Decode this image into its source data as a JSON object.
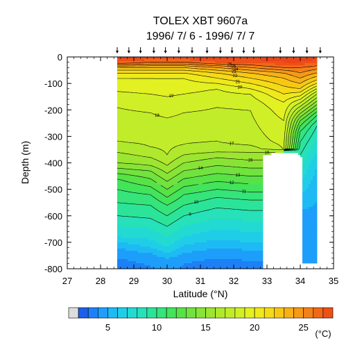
{
  "chart_data": {
    "type": "heatmap",
    "title": "TOLEX XBT 9607a",
    "subtitle": "1996/ 7/ 6 - 1996/ 7/ 7",
    "xlabel": "Latitude (°N)",
    "ylabel": "Depth (m)",
    "xlim": [
      27,
      35
    ],
    "ylim": [
      -800,
      0
    ],
    "x_ticks": [
      "27",
      "28",
      "29",
      "30",
      "31",
      "32",
      "33",
      "34",
      "35"
    ],
    "y_ticks": [
      "0",
      "-100",
      "-200",
      "-300",
      "-400",
      "-500",
      "-600",
      "-700",
      "-800"
    ],
    "x_tick_values": [
      27,
      28,
      29,
      30,
      31,
      32,
      33,
      34,
      35
    ],
    "y_tick_values": [
      0,
      -100,
      -200,
      -300,
      -400,
      -500,
      -600,
      -700,
      -800
    ],
    "colorbar": {
      "min": 2,
      "max": 28,
      "step": 1,
      "labels": [
        "5",
        "10",
        "15",
        "20",
        "25"
      ],
      "label_values": [
        5,
        10,
        15,
        20,
        25
      ],
      "unit": "(°C)"
    },
    "xbt_station_latitudes": [
      28.5,
      28.85,
      29.2,
      29.6,
      29.95,
      30.35,
      30.75,
      31.2,
      31.6,
      31.95,
      32.3,
      32.6,
      33.4,
      33.8,
      34.2,
      34.6
    ],
    "data_extent": {
      "lat_min": 28.5,
      "lat_max": 34.5,
      "max_depth": -800
    },
    "bottom_profile": [
      [
        32.9,
        -370
      ],
      [
        33.4,
        -360
      ],
      [
        33.9,
        -360
      ],
      [
        34.0,
        -375
      ],
      [
        34.5,
        -375
      ]
    ],
    "profiles": [
      {
        "lat": 28.5,
        "temps": [
          [
            0,
            29
          ],
          [
            -20,
            27
          ],
          [
            -40,
            23
          ],
          [
            -60,
            21
          ],
          [
            -80,
            20
          ],
          [
            -130,
            19
          ],
          [
            -190,
            18
          ],
          [
            -320,
            17
          ],
          [
            -360,
            16
          ],
          [
            -400,
            15
          ],
          [
            -420,
            14
          ],
          [
            -440,
            13
          ],
          [
            -460,
            12
          ],
          [
            -500,
            11
          ],
          [
            -550,
            10
          ],
          [
            -600,
            9
          ],
          [
            -640,
            8
          ],
          [
            -680,
            7
          ],
          [
            -700,
            6
          ],
          [
            -720,
            5
          ],
          [
            -760,
            4
          ],
          [
            -800,
            3
          ]
        ]
      },
      {
        "lat": 29.5,
        "temps": [
          [
            0,
            28
          ],
          [
            -20,
            26
          ],
          [
            -40,
            23
          ],
          [
            -60,
            21
          ],
          [
            -80,
            20
          ],
          [
            -140,
            19
          ],
          [
            -210,
            18
          ],
          [
            -340,
            17
          ],
          [
            -380,
            16
          ],
          [
            -410,
            15
          ],
          [
            -430,
            14
          ],
          [
            -460,
            13
          ],
          [
            -490,
            12
          ],
          [
            -520,
            11
          ],
          [
            -560,
            10
          ],
          [
            -610,
            9
          ],
          [
            -650,
            8
          ],
          [
            -690,
            7
          ],
          [
            -720,
            6
          ],
          [
            -740,
            5
          ],
          [
            -790,
            4
          ],
          [
            -800,
            3.8
          ]
        ]
      },
      {
        "lat": 30.0,
        "temps": [
          [
            0,
            28
          ],
          [
            -20,
            26
          ],
          [
            -40,
            23
          ],
          [
            -60,
            21
          ],
          [
            -80,
            20
          ],
          [
            -150,
            19
          ],
          [
            -230,
            18
          ],
          [
            -370,
            17
          ],
          [
            -410,
            16
          ],
          [
            -440,
            15
          ],
          [
            -470,
            14
          ],
          [
            -500,
            13
          ],
          [
            -530,
            12
          ],
          [
            -560,
            11
          ],
          [
            -600,
            10
          ],
          [
            -640,
            9
          ],
          [
            -680,
            8
          ],
          [
            -720,
            7
          ],
          [
            -740,
            6
          ],
          [
            -760,
            5
          ],
          [
            -800,
            4.5
          ]
        ]
      },
      {
        "lat": 30.5,
        "temps": [
          [
            0,
            28
          ],
          [
            -20,
            26
          ],
          [
            -40,
            23
          ],
          [
            -60,
            21
          ],
          [
            -80,
            20
          ],
          [
            -140,
            19
          ],
          [
            -210,
            18
          ],
          [
            -330,
            17
          ],
          [
            -370,
            16
          ],
          [
            -400,
            15
          ],
          [
            -430,
            14
          ],
          [
            -460,
            13
          ],
          [
            -490,
            12
          ],
          [
            -520,
            11
          ],
          [
            -560,
            10
          ],
          [
            -600,
            9
          ],
          [
            -640,
            8
          ],
          [
            -680,
            7
          ],
          [
            -710,
            6
          ],
          [
            -740,
            5
          ],
          [
            -780,
            4
          ],
          [
            -800,
            3.8
          ]
        ]
      },
      {
        "lat": 31.5,
        "temps": [
          [
            0,
            29
          ],
          [
            -20,
            27
          ],
          [
            -40,
            24
          ],
          [
            -60,
            22
          ],
          [
            -80,
            21
          ],
          [
            -120,
            19
          ],
          [
            -190,
            18
          ],
          [
            -320,
            17
          ],
          [
            -360,
            16
          ],
          [
            -380,
            15
          ],
          [
            -410,
            14
          ],
          [
            -440,
            13
          ],
          [
            -470,
            12
          ],
          [
            -500,
            11
          ],
          [
            -530,
            10
          ],
          [
            -570,
            9
          ],
          [
            -610,
            8
          ],
          [
            -650,
            7
          ],
          [
            -690,
            6
          ],
          [
            -720,
            5
          ],
          [
            -760,
            4
          ],
          [
            -800,
            3
          ]
        ]
      },
      {
        "lat": 32.5,
        "temps": [
          [
            0,
            29
          ],
          [
            -20,
            27
          ],
          [
            -40,
            25
          ],
          [
            -60,
            23
          ],
          [
            -80,
            22
          ],
          [
            -100,
            21
          ],
          [
            -140,
            19
          ],
          [
            -200,
            18
          ],
          [
            -320,
            17.5
          ],
          [
            -360,
            16
          ],
          [
            -390,
            15
          ],
          [
            -420,
            14
          ],
          [
            -450,
            13
          ],
          [
            -480,
            12
          ],
          [
            -510,
            11
          ],
          [
            -540,
            10
          ],
          [
            -580,
            9
          ],
          [
            -620,
            8
          ],
          [
            -660,
            7
          ],
          [
            -700,
            6
          ],
          [
            -730,
            5
          ],
          [
            -770,
            4
          ],
          [
            -800,
            3.5
          ]
        ]
      },
      {
        "lat": 33.5,
        "temps": [
          [
            0,
            29
          ],
          [
            -20,
            28
          ],
          [
            -40,
            26
          ],
          [
            -60,
            24
          ],
          [
            -80,
            23
          ],
          [
            -110,
            22
          ],
          [
            -140,
            21
          ],
          [
            -170,
            20
          ],
          [
            -240,
            19
          ],
          [
            -350,
            18
          ]
        ]
      },
      {
        "lat": 34.0,
        "temps": [
          [
            0,
            29
          ],
          [
            -20,
            28
          ],
          [
            -40,
            26
          ],
          [
            -80,
            24
          ],
          [
            -120,
            22
          ],
          [
            -160,
            19
          ],
          [
            -200,
            16
          ],
          [
            -240,
            13
          ],
          [
            -280,
            11
          ],
          [
            -320,
            10
          ],
          [
            -370,
            9
          ],
          [
            -420,
            8
          ],
          [
            -470,
            7
          ],
          [
            -520,
            6
          ],
          [
            -580,
            5
          ],
          [
            -660,
            4.5
          ],
          [
            -780,
            4
          ]
        ]
      },
      {
        "lat": 34.5,
        "temps": [
          [
            0,
            29
          ],
          [
            -20,
            27
          ],
          [
            -60,
            24
          ],
          [
            -100,
            21
          ],
          [
            -140,
            17
          ],
          [
            -180,
            14
          ],
          [
            -220,
            11
          ],
          [
            -260,
            9
          ],
          [
            -310,
            8
          ],
          [
            -360,
            7
          ],
          [
            -410,
            6
          ],
          [
            -460,
            5.5
          ],
          [
            -540,
            5
          ],
          [
            -640,
            4.5
          ],
          [
            -780,
            4
          ]
        ]
      }
    ],
    "contour_levels": [
      9,
      10,
      11,
      12,
      13,
      14,
      15,
      16,
      17,
      18,
      19,
      20,
      21,
      22,
      23,
      24,
      25,
      26
    ]
  }
}
